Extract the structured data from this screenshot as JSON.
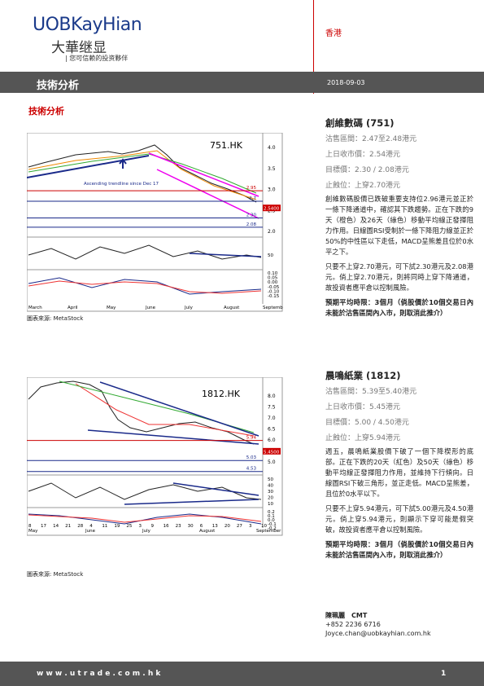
{
  "header": {
    "logo": "UOBKayHian",
    "logo_cn": "大華继显",
    "tagline": "| 您可信赖的投资夥伴",
    "region": "香港"
  },
  "banner": {
    "title": "技術分析",
    "date": "2018-09-03"
  },
  "section_title": "技術分析",
  "charts": [
    {
      "ticker": "751.HK",
      "y_labels": [
        "4.0",
        "3.5",
        "3.0",
        "2.5",
        "2.0"
      ],
      "levels": [
        "2.95",
        "2.7",
        "2.30",
        "2.08"
      ],
      "price": "2.5400",
      "annotation": "Ascending trendline since Dec 17",
      "months": [
        "March",
        "April",
        "May",
        "June",
        "July",
        "August",
        "Septemb"
      ],
      "rsi_labels": [
        "50"
      ],
      "macd_labels": [
        "0.10",
        "0.05",
        "0.00",
        "-0.05",
        "-0.10",
        "-0.15"
      ],
      "source": "圖表來源: MetaStock"
    },
    {
      "ticker": "1812.HK",
      "y_labels": [
        "8.0",
        "7.5",
        "7.0",
        "6.5",
        "6.0",
        "5.5",
        "5.0"
      ],
      "levels": [
        "5.94",
        "5.03",
        "4.53"
      ],
      "price": "5.4500",
      "days": [
        "8",
        "17",
        "14",
        "21",
        "28",
        "4",
        "11",
        "19",
        "25",
        "3",
        "9",
        "16",
        "23",
        "30",
        "6",
        "13",
        "20",
        "27",
        "3",
        "10"
      ],
      "months": [
        "May",
        "June",
        "July",
        "August",
        "September"
      ],
      "rsi_labels": [
        "50",
        "40",
        "30",
        "20",
        "10"
      ],
      "macd_labels": [
        "0.2",
        "0.1",
        "0.0",
        "-0.1",
        "-0.2"
      ],
      "source": "圖表來源: MetaStock"
    }
  ],
  "stocks": [
    {
      "name": "創維數碼 (751)",
      "fields": [
        "沽售區間：2.47至2.48港元",
        "上日收市價：2.54港元",
        "目標價：2.30 / 2.08港元",
        "止蝕位：上穿2.70港元"
      ],
      "paragraphs": [
        "創維數碼股價已跌破重要支持位2.96港元並正於一條下降通道中，確認其下跌趨勢。正在下跌的9天（橙色）及26天（綠色）移動平均線正發揮阻力作用。日線圖RSI受制於一條下降阻力線並正於50%的中性區以下走低，MACD呈熊差且位於0水平之下。",
        "只要不上穿2.70港元，可下試2.30港元及2.08港元。倘上穿2.70港元，則將同時上穿下降通道，故投資者應平倉以控制風險。"
      ],
      "horizon": "預期平均時限：3個月（倘股價於10個交易日內未能於沽售區間內入市，則取消此推介）"
    },
    {
      "name": "晨鳴紙業 (1812)",
      "fields": [
        "沽售區間：5.39至5.40港元",
        "上日收市價：5.45港元",
        "目標價：5.00 / 4.50港元",
        "止蝕位：上穿5.94港元"
      ],
      "paragraphs": [
        "週五，晨鳴紙業股價下破了一個下降楔形的底部。正在下跌的20天（紅色）及50天（綠色）移動平均線正發揮阻力作用，並維持下行傾向。日線圖RSI下破三角形，並正走低。MACD呈熊差，且位於0水平以下。",
        "只要不上穿5.94港元，可下試5.00港元及4.50港元。倘上穿5.94港元，則顯示下穿可能是假突破，故投資者應平倉以控制風險。"
      ],
      "horizon": "預期平均時限：3個月（倘股價於10個交易日內未能於沽售區間內入市，則取消此推介）"
    }
  ],
  "contact": {
    "name": "陳珮麗　CMT",
    "phone": "+852 2236 6716",
    "email": "Joyce.chan@uobkayhian.com.hk"
  },
  "footer": {
    "url": "w w w . u t r a d e . c o m . h k",
    "page": "1"
  }
}
